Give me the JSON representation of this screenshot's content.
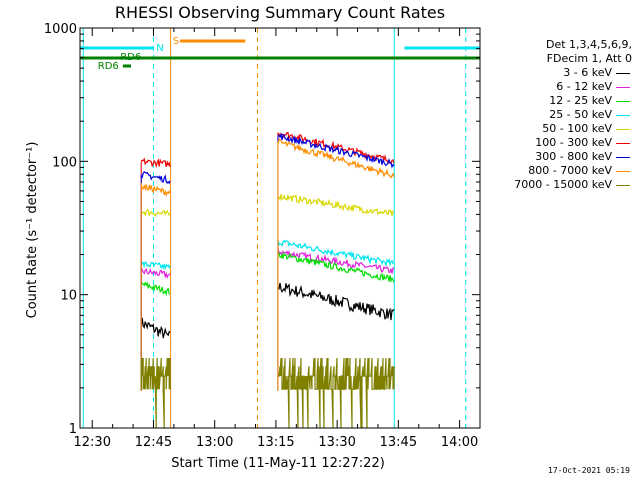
{
  "chart_data": {
    "type": "line",
    "title": "RHESSI Observing Summary Count Rates",
    "xlabel": "Start Time (11-May-11 12:27:22)",
    "ylabel": "Count Rate (s⁻¹ detector⁻¹)",
    "ylog": true,
    "ylim": [
      1,
      1000
    ],
    "xlim_minutes": [
      -3,
      95
    ],
    "x_ticks": [
      {
        "t": 0,
        "label": "12:30"
      },
      {
        "t": 15,
        "label": "12:45"
      },
      {
        "t": 30,
        "label": "13:00"
      },
      {
        "t": 45,
        "label": "13:15"
      },
      {
        "t": 60,
        "label": "13:30"
      },
      {
        "t": 75,
        "label": "13:45"
      },
      {
        "t": 90,
        "label": "14:00"
      }
    ],
    "y_ticks": [
      {
        "v": 1,
        "label": "1"
      },
      {
        "v": 10,
        "label": "10"
      },
      {
        "v": 100,
        "label": "100"
      },
      {
        "v": 1000,
        "label": "1000"
      }
    ],
    "legend_header": [
      "Det 1,3,4,5,6,9,",
      "FDecim 1, Att 0"
    ],
    "series": [
      {
        "name": "3 - 6 keV",
        "color": "#000000",
        "seg1": [
          6.2,
          4.8
        ],
        "seg2": [
          11.5,
          7.0
        ]
      },
      {
        "name": "6 - 12 keV",
        "color": "#e020e0",
        "seg1": [
          15,
          14
        ],
        "seg2": [
          21,
          15
        ]
      },
      {
        "name": "12 - 25 keV",
        "color": "#00dd00",
        "seg1": [
          12,
          10.5
        ],
        "seg2": [
          20,
          13
        ]
      },
      {
        "name": "25 - 50 keV",
        "color": "#00e5ee",
        "seg1": [
          17,
          16
        ],
        "seg2": [
          25,
          17
        ]
      },
      {
        "name": "50 - 100 keV",
        "color": "#d8d800",
        "seg1": [
          42,
          40
        ],
        "seg2": [
          55,
          40
        ]
      },
      {
        "name": "100 - 300 keV",
        "color": "#ee0000",
        "seg1": [
          100,
          95
        ],
        "seg2": [
          165,
          100
        ]
      },
      {
        "name": "300 - 800 keV",
        "color": "#0000dd",
        "seg1": [
          80,
          72
        ],
        "seg2": [
          155,
          95
        ]
      },
      {
        "name": "800 - 7000 keV",
        "color": "#ff8c00",
        "seg1": [
          65,
          58
        ],
        "seg2": [
          140,
          78
        ]
      },
      {
        "name": "7000 - 15000 keV",
        "color": "#808000",
        "seg1": [
          2.6,
          2.6
        ],
        "seg2": [
          2.6,
          2.6
        ]
      }
    ],
    "segments": {
      "seg1": [
        12,
        19
      ],
      "seg2": [
        45.5,
        74
      ]
    },
    "flags": [
      {
        "label": "S",
        "color": "#ff8c00"
      },
      {
        "label": "N",
        "color": "#00e5ee"
      },
      {
        "label": "RD6",
        "color": "#008000"
      },
      {
        "label": "RD6",
        "color": "#008000"
      }
    ],
    "timestamp": "17-Oct-2021 05:19"
  }
}
